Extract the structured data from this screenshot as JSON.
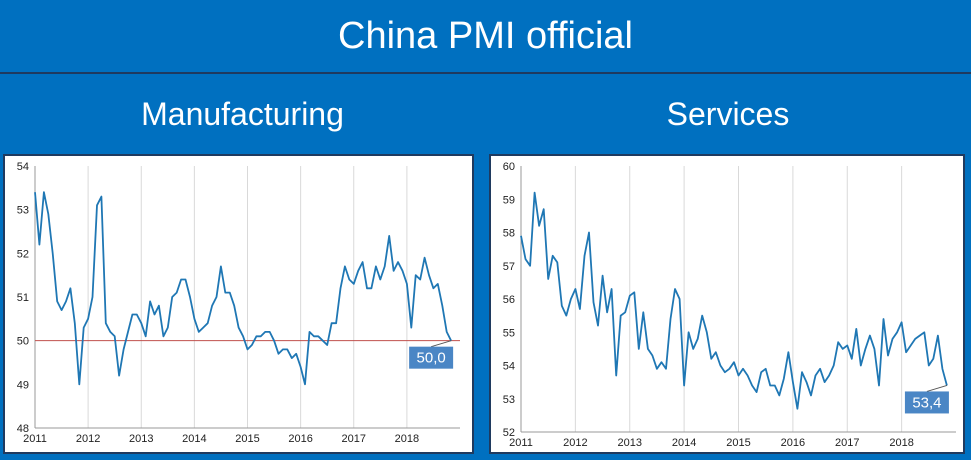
{
  "header": {
    "title": "China PMI official"
  },
  "subtitles": {
    "left": "Manufacturing",
    "right": "Services"
  },
  "colors": {
    "background": "#0070c0",
    "line": "#1f77b4",
    "label_bg": "#4a86c5",
    "ref_line": "#c0504d"
  },
  "chart_data": [
    {
      "type": "line",
      "title": "Manufacturing",
      "x_labels": [
        "2011",
        "2012",
        "2013",
        "2014",
        "2015",
        "2016",
        "2017",
        "2018"
      ],
      "xlim": [
        2011,
        2019
      ],
      "ylim": [
        48,
        54
      ],
      "y_ticks": [
        "48",
        "49",
        "50",
        "51",
        "52",
        "53",
        "54"
      ],
      "reference_line": 50,
      "last_label": "50,0",
      "grid": "vertical",
      "series": [
        {
          "values": [
            [
              2011.0,
              53.4
            ],
            [
              2011.083,
              52.2
            ],
            [
              2011.167,
              53.4
            ],
            [
              2011.25,
              52.9
            ],
            [
              2011.333,
              52.0
            ],
            [
              2011.417,
              50.9
            ],
            [
              2011.5,
              50.7
            ],
            [
              2011.583,
              50.9
            ],
            [
              2011.667,
              51.2
            ],
            [
              2011.75,
              50.4
            ],
            [
              2011.833,
              49.0
            ],
            [
              2011.917,
              50.3
            ],
            [
              2012.0,
              50.5
            ],
            [
              2012.083,
              51.0
            ],
            [
              2012.167,
              53.1
            ],
            [
              2012.25,
              53.3
            ],
            [
              2012.333,
              50.4
            ],
            [
              2012.417,
              50.2
            ],
            [
              2012.5,
              50.1
            ],
            [
              2012.583,
              49.2
            ],
            [
              2012.667,
              49.8
            ],
            [
              2012.75,
              50.2
            ],
            [
              2012.833,
              50.6
            ],
            [
              2012.917,
              50.6
            ],
            [
              2013.0,
              50.4
            ],
            [
              2013.083,
              50.1
            ],
            [
              2013.167,
              50.9
            ],
            [
              2013.25,
              50.6
            ],
            [
              2013.333,
              50.8
            ],
            [
              2013.417,
              50.1
            ],
            [
              2013.5,
              50.3
            ],
            [
              2013.583,
              51.0
            ],
            [
              2013.667,
              51.1
            ],
            [
              2013.75,
              51.4
            ],
            [
              2013.833,
              51.4
            ],
            [
              2013.917,
              51.0
            ],
            [
              2014.0,
              50.5
            ],
            [
              2014.083,
              50.2
            ],
            [
              2014.167,
              50.3
            ],
            [
              2014.25,
              50.4
            ],
            [
              2014.333,
              50.8
            ],
            [
              2014.417,
              51.0
            ],
            [
              2014.5,
              51.7
            ],
            [
              2014.583,
              51.1
            ],
            [
              2014.667,
              51.1
            ],
            [
              2014.75,
              50.8
            ],
            [
              2014.833,
              50.3
            ],
            [
              2014.917,
              50.1
            ],
            [
              2015.0,
              49.8
            ],
            [
              2015.083,
              49.9
            ],
            [
              2015.167,
              50.1
            ],
            [
              2015.25,
              50.1
            ],
            [
              2015.333,
              50.2
            ],
            [
              2015.417,
              50.2
            ],
            [
              2015.5,
              50.0
            ],
            [
              2015.583,
              49.7
            ],
            [
              2015.667,
              49.8
            ],
            [
              2015.75,
              49.8
            ],
            [
              2015.833,
              49.6
            ],
            [
              2015.917,
              49.7
            ],
            [
              2016.0,
              49.4
            ],
            [
              2016.083,
              49.0
            ],
            [
              2016.167,
              50.2
            ],
            [
              2016.25,
              50.1
            ],
            [
              2016.333,
              50.1
            ],
            [
              2016.417,
              50.0
            ],
            [
              2016.5,
              49.9
            ],
            [
              2016.583,
              50.4
            ],
            [
              2016.667,
              50.4
            ],
            [
              2016.75,
              51.2
            ],
            [
              2016.833,
              51.7
            ],
            [
              2016.917,
              51.4
            ],
            [
              2017.0,
              51.3
            ],
            [
              2017.083,
              51.6
            ],
            [
              2017.167,
              51.8
            ],
            [
              2017.25,
              51.2
            ],
            [
              2017.333,
              51.2
            ],
            [
              2017.417,
              51.7
            ],
            [
              2017.5,
              51.4
            ],
            [
              2017.583,
              51.7
            ],
            [
              2017.667,
              52.4
            ],
            [
              2017.75,
              51.6
            ],
            [
              2017.833,
              51.8
            ],
            [
              2017.917,
              51.6
            ],
            [
              2018.0,
              51.3
            ],
            [
              2018.083,
              50.3
            ],
            [
              2018.167,
              51.5
            ],
            [
              2018.25,
              51.4
            ],
            [
              2018.333,
              51.9
            ],
            [
              2018.417,
              51.5
            ],
            [
              2018.5,
              51.2
            ],
            [
              2018.583,
              51.3
            ],
            [
              2018.667,
              50.8
            ],
            [
              2018.75,
              50.2
            ],
            [
              2018.833,
              50.0
            ]
          ]
        }
      ]
    },
    {
      "type": "line",
      "title": "Services",
      "x_labels": [
        "2011",
        "2012",
        "2013",
        "2014",
        "2015",
        "2016",
        "2017",
        "2018"
      ],
      "xlim": [
        2011,
        2019
      ],
      "ylim": [
        52,
        60
      ],
      "y_ticks": [
        "52",
        "53",
        "54",
        "55",
        "56",
        "57",
        "58",
        "59",
        "60"
      ],
      "last_label": "53,4",
      "grid": "vertical",
      "series": [
        {
          "values": [
            [
              2011.0,
              57.9
            ],
            [
              2011.083,
              57.2
            ],
            [
              2011.167,
              57.0
            ],
            [
              2011.25,
              59.2
            ],
            [
              2011.333,
              58.2
            ],
            [
              2011.417,
              58.7
            ],
            [
              2011.5,
              56.6
            ],
            [
              2011.583,
              57.3
            ],
            [
              2011.667,
              57.1
            ],
            [
              2011.75,
              55.8
            ],
            [
              2011.833,
              55.5
            ],
            [
              2011.917,
              56.0
            ],
            [
              2012.0,
              56.3
            ],
            [
              2012.083,
              55.7
            ],
            [
              2012.167,
              57.3
            ],
            [
              2012.25,
              58.0
            ],
            [
              2012.333,
              55.9
            ],
            [
              2012.417,
              55.2
            ],
            [
              2012.5,
              56.7
            ],
            [
              2012.583,
              55.6
            ],
            [
              2012.667,
              56.3
            ],
            [
              2012.75,
              53.7
            ],
            [
              2012.833,
              55.5
            ],
            [
              2012.917,
              55.6
            ],
            [
              2013.0,
              56.1
            ],
            [
              2013.083,
              56.2
            ],
            [
              2013.167,
              54.5
            ],
            [
              2013.25,
              55.6
            ],
            [
              2013.333,
              54.5
            ],
            [
              2013.417,
              54.3
            ],
            [
              2013.5,
              53.9
            ],
            [
              2013.583,
              54.1
            ],
            [
              2013.667,
              53.9
            ],
            [
              2013.75,
              55.4
            ],
            [
              2013.833,
              56.3
            ],
            [
              2013.917,
              56.0
            ],
            [
              2014.0,
              53.4
            ],
            [
              2014.083,
              55.0
            ],
            [
              2014.167,
              54.5
            ],
            [
              2014.25,
              54.8
            ],
            [
              2014.333,
              55.5
            ],
            [
              2014.417,
              55.0
            ],
            [
              2014.5,
              54.2
            ],
            [
              2014.583,
              54.4
            ],
            [
              2014.667,
              54.0
            ],
            [
              2014.75,
              53.8
            ],
            [
              2014.833,
              53.9
            ],
            [
              2014.917,
              54.1
            ],
            [
              2015.0,
              53.7
            ],
            [
              2015.083,
              53.9
            ],
            [
              2015.167,
              53.7
            ],
            [
              2015.25,
              53.4
            ],
            [
              2015.333,
              53.2
            ],
            [
              2015.417,
              53.8
            ],
            [
              2015.5,
              53.9
            ],
            [
              2015.583,
              53.4
            ],
            [
              2015.667,
              53.4
            ],
            [
              2015.75,
              53.1
            ],
            [
              2015.833,
              53.6
            ],
            [
              2015.917,
              54.4
            ],
            [
              2016.0,
              53.5
            ],
            [
              2016.083,
              52.7
            ],
            [
              2016.167,
              53.8
            ],
            [
              2016.25,
              53.5
            ],
            [
              2016.333,
              53.1
            ],
            [
              2016.417,
              53.7
            ],
            [
              2016.5,
              53.9
            ],
            [
              2016.583,
              53.5
            ],
            [
              2016.667,
              53.7
            ],
            [
              2016.75,
              54.0
            ],
            [
              2016.833,
              54.7
            ],
            [
              2016.917,
              54.5
            ],
            [
              2017.0,
              54.6
            ],
            [
              2017.083,
              54.2
            ],
            [
              2017.167,
              55.1
            ],
            [
              2017.25,
              54.0
            ],
            [
              2017.333,
              54.5
            ],
            [
              2017.417,
              54.9
            ],
            [
              2017.5,
              54.5
            ],
            [
              2017.583,
              53.4
            ],
            [
              2017.667,
              55.4
            ],
            [
              2017.75,
              54.3
            ],
            [
              2017.833,
              54.8
            ],
            [
              2017.917,
              55.0
            ],
            [
              2018.0,
              55.3
            ],
            [
              2018.083,
              54.4
            ],
            [
              2018.167,
              54.6
            ],
            [
              2018.25,
              54.8
            ],
            [
              2018.333,
              54.9
            ],
            [
              2018.417,
              55.0
            ],
            [
              2018.5,
              54.0
            ],
            [
              2018.583,
              54.2
            ],
            [
              2018.667,
              54.9
            ],
            [
              2018.75,
              53.9
            ],
            [
              2018.833,
              53.4
            ]
          ]
        }
      ]
    }
  ]
}
